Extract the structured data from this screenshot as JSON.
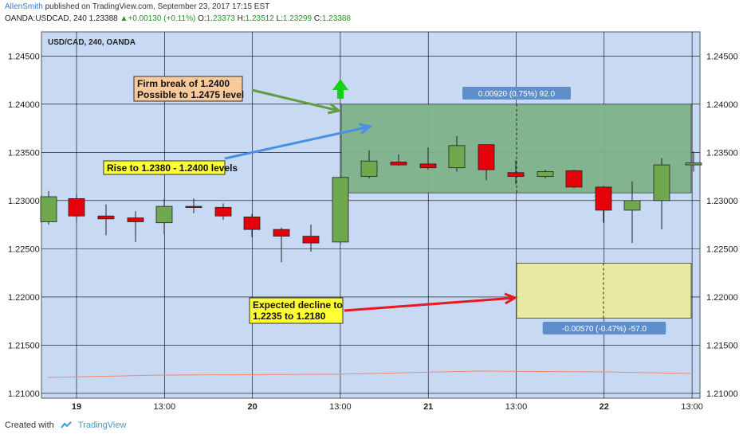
{
  "header": {
    "author": "AllenSmith",
    "published_text": "published on TradingView.com, September 23, 2017 17:15 EST",
    "symbol": "OANDA:USDCAD, 240",
    "last": "1.23388",
    "change_arrow": "▲",
    "change": "+0.00130 (+0.11%)",
    "o_label": "O:",
    "o_value": "1.23373",
    "h_label": "H:",
    "h_value": "1.23512",
    "l_label": "L:",
    "l_value": "1.23299",
    "c_label": "C:",
    "c_value": "1.23388"
  },
  "footer": {
    "created_with": "Created with",
    "brand": "TradingView"
  },
  "colors": {
    "background": "#c8d9f3",
    "up": "#6fa84f",
    "down": "#e5000a",
    "grid": "#000000"
  },
  "chart_data": {
    "type": "candlestick",
    "title": "USD/CAD, 240, OANDA",
    "ylim": [
      1.2095,
      1.2475
    ],
    "y_ticks": [
      "1.21000",
      "1.21500",
      "1.22000",
      "1.22500",
      "1.23000",
      "1.23500",
      "1.24000",
      "1.24500"
    ],
    "x_ticks": [
      "19",
      "13:00",
      "20",
      "13:00",
      "21",
      "13:00",
      "22",
      "13:00"
    ],
    "candles": [
      {
        "o": 1.2278,
        "h": 1.231,
        "l": 1.2275,
        "c": 1.2304
      },
      {
        "o": 1.2302,
        "h": 1.2307,
        "l": 1.2278,
        "c": 1.2284
      },
      {
        "o": 1.2284,
        "h": 1.2296,
        "l": 1.2264,
        "c": 1.2281
      },
      {
        "o": 1.2282,
        "h": 1.2289,
        "l": 1.2257,
        "c": 1.2278
      },
      {
        "o": 1.2277,
        "h": 1.2302,
        "l": 1.2265,
        "c": 1.2294
      },
      {
        "o": 1.2294,
        "h": 1.2302,
        "l": 1.2287,
        "c": 1.2293
      },
      {
        "o": 1.2293,
        "h": 1.2297,
        "l": 1.228,
        "c": 1.2284
      },
      {
        "o": 1.2283,
        "h": 1.2286,
        "l": 1.2262,
        "c": 1.227
      },
      {
        "o": 1.227,
        "h": 1.2272,
        "l": 1.2236,
        "c": 1.2263
      },
      {
        "o": 1.2263,
        "h": 1.2275,
        "l": 1.2247,
        "c": 1.2256
      },
      {
        "o": 1.2257,
        "h": 1.2325,
        "l": 1.2254,
        "c": 1.2324
      },
      {
        "o": 1.2325,
        "h": 1.2352,
        "l": 1.2323,
        "c": 1.2341
      },
      {
        "o": 1.234,
        "h": 1.2348,
        "l": 1.2336,
        "c": 1.2337
      },
      {
        "o": 1.2338,
        "h": 1.2355,
        "l": 1.2332,
        "c": 1.2334
      },
      {
        "o": 1.2334,
        "h": 1.2367,
        "l": 1.233,
        "c": 1.2357
      },
      {
        "o": 1.2358,
        "h": 1.2358,
        "l": 1.2321,
        "c": 1.2332
      },
      {
        "o": 1.2329,
        "h": 1.2342,
        "l": 1.2317,
        "c": 1.2325
      },
      {
        "o": 1.2325,
        "h": 1.2332,
        "l": 1.2323,
        "c": 1.233
      },
      {
        "o": 1.2331,
        "h": 1.2332,
        "l": 1.2313,
        "c": 1.2314
      },
      {
        "o": 1.2314,
        "h": 1.2315,
        "l": 1.2277,
        "c": 1.229
      },
      {
        "o": 1.229,
        "h": 1.232,
        "l": 1.2256,
        "c": 1.23
      },
      {
        "o": 1.23,
        "h": 1.2344,
        "l": 1.227,
        "c": 1.2337
      },
      {
        "o": 1.2337,
        "h": 1.2351,
        "l": 1.233,
        "c": 1.2339
      }
    ],
    "measure_boxes": [
      {
        "label": "0.00920 (0.75%) 92.0",
        "from_candle": 10,
        "to_candle": 22,
        "top": 1.24,
        "bottom": 1.2308,
        "color": "#7fb38a"
      },
      {
        "label": "-0.00570 (-0.47%) -57.0",
        "from_candle": 16,
        "to_candle": 22,
        "top": 1.2235,
        "bottom": 1.2178,
        "color": "#e9ed9d"
      }
    ],
    "annotations": [
      {
        "lines": [
          "Firm break of 1.2400",
          "Possible to 1.2475 level"
        ],
        "style": "orange",
        "arrow_color": "#5f9e3f"
      },
      {
        "lines": [
          "Rise to 1.2380 - 1.2400 levels"
        ],
        "style": "yellow",
        "arrow_color": "#4a8ee8"
      },
      {
        "lines": [
          "Expected decline to",
          "1.2235 to 1.2180"
        ],
        "style": "yellow",
        "arrow_color": "#e8191f"
      }
    ]
  }
}
